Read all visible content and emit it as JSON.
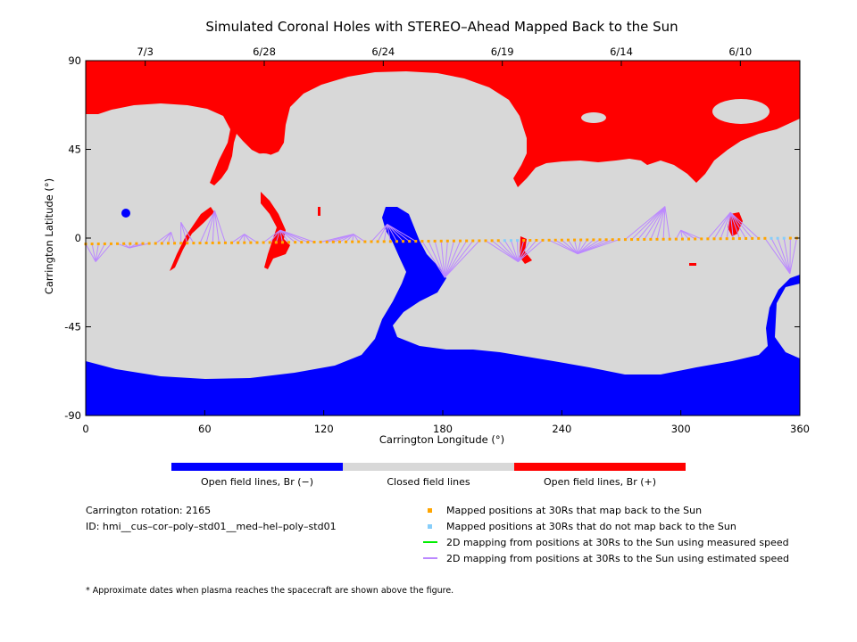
{
  "title": "Simulated Coronal Holes with STEREO–Ahead Mapped Back to the Sun",
  "chart_data": {
    "type": "map",
    "xlabel": "Carrington Longitude (°)",
    "ylabel": "Carrington Latitude (°)",
    "xlim": [
      0,
      360
    ],
    "ylim": [
      -90,
      90
    ],
    "x_ticks": [
      0,
      60,
      120,
      180,
      240,
      300,
      360
    ],
    "y_ticks": [
      90,
      45,
      0,
      -45,
      -90
    ],
    "top_date_ticks": [
      {
        "lon": 30,
        "label": "7/3"
      },
      {
        "lon": 90,
        "label": "6/28"
      },
      {
        "lon": 150,
        "label": "6/24"
      },
      {
        "lon": 210,
        "label": "6/19"
      },
      {
        "lon": 270,
        "label": "6/14"
      },
      {
        "lon": 330,
        "label": "6/10"
      }
    ],
    "colors": {
      "open_negative": "#0000ff",
      "closed": "#d8d8d8",
      "open_positive": "#ff0000",
      "mapped": "#ffa500",
      "not_mapped": "#87cefa",
      "measured_speed": "#00ee00",
      "estimated_speed": "#bb88ff"
    },
    "mapping_footpoints": [
      {
        "lon": 5,
        "lat": -12
      },
      {
        "lon": 22,
        "lat": -5
      },
      {
        "lon": 43,
        "lat": 3
      },
      {
        "lon": 48,
        "lat": 8
      },
      {
        "lon": 65,
        "lat": 14
      },
      {
        "lon": 80,
        "lat": 2
      },
      {
        "lon": 98,
        "lat": 4
      },
      {
        "lon": 135,
        "lat": 2
      },
      {
        "lon": 152,
        "lat": 7
      },
      {
        "lon": 181,
        "lat": -20
      },
      {
        "lon": 218,
        "lat": -12
      },
      {
        "lon": 248,
        "lat": -8
      },
      {
        "lon": 292,
        "lat": 16
      },
      {
        "lon": 300,
        "lat": 4
      },
      {
        "lon": 325,
        "lat": 13
      },
      {
        "lon": 355,
        "lat": -18
      }
    ]
  },
  "colorbar": {
    "labels": [
      "Open field lines, Br (−)",
      "Closed field lines",
      "Open field lines, Br (+)"
    ]
  },
  "info": {
    "rotation": "Carrington rotation: 2165",
    "id": "ID: hmi__cus–cor–poly–std01__med–hel–poly–std01"
  },
  "legend": {
    "mapped": "Mapped positions at 30Rs that map back to the Sun",
    "not_mapped": "Mapped positions at 30Rs that do not map back to the Sun",
    "measured": "2D mapping from positions at 30Rs to the Sun using measured speed",
    "estimated": "2D mapping from positions at 30Rs to the Sun using estimated speed"
  },
  "footnote": "* Approximate dates when plasma reaches the spacecraft are shown above the figure."
}
